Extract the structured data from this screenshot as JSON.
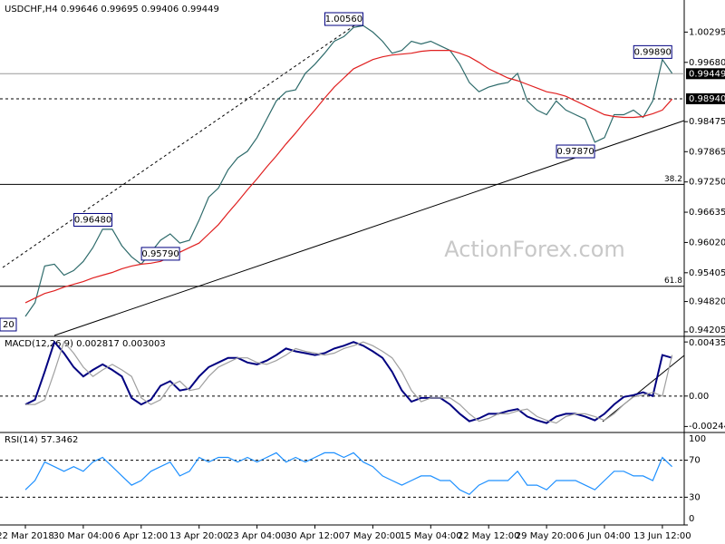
{
  "chart_data": [
    {
      "type": "line",
      "title": "USDCHF,H4 0.99646 0.99695 0.99406 0.99449",
      "categories": [
        "22 Mar 2018",
        null,
        null,
        null,
        null,
        null,
        "30 Mar 04:00",
        null,
        null,
        null,
        null,
        null,
        "6 Apr 12:00",
        null,
        null,
        null,
        null,
        null,
        "13 Apr 20:00",
        null,
        null,
        null,
        null,
        null,
        "23 Apr 04:00",
        null,
        null,
        null,
        null,
        null,
        "30 Apr 12:00",
        null,
        null,
        null,
        null,
        null,
        "7 May 20:00",
        null,
        null,
        null,
        null,
        null,
        "15 May 04:00",
        null,
        null,
        null,
        null,
        null,
        "22 May 12:00",
        null,
        null,
        null,
        null,
        null,
        "29 May 20:00",
        null,
        null,
        null,
        null,
        null,
        "6 Jun 04:00",
        null,
        null,
        null,
        null,
        null,
        "13 Jun 12:00",
        null
      ],
      "series": [
        {
          "color": "#2e6b6b",
          "values": [
            0.94517,
            0.94796,
            0.95542,
            0.95579,
            0.95355,
            0.95449,
            0.95635,
            0.95915,
            0.96287,
            0.96287,
            0.95952,
            0.95728,
            0.95579,
            0.95821,
            0.96064,
            0.96194,
            0.96008,
            0.96064,
            0.96474,
            0.9694,
            0.97126,
            0.97499,
            0.97741,
            0.97872,
            0.98151,
            0.98524,
            0.98897,
            0.99083,
            0.99121,
            0.99456,
            0.99643,
            0.99866,
            1.00109,
            1.00202,
            1.00388,
            1.00425,
            1.00295,
            1.00109,
            0.99866,
            0.99922,
            1.00109,
            1.00053,
            1.00109,
            1.00015,
            0.99922,
            0.99643,
            0.9927,
            0.99083,
            0.99177,
            0.99233,
            0.9927,
            0.99456,
            0.98897,
            0.98711,
            0.98617,
            0.98897,
            0.98711,
            0.98617,
            0.98524,
            0.98058,
            0.98151,
            0.98617,
            0.98617,
            0.98711,
            0.98561,
            0.98897,
            0.99736,
            0.99456
          ]
        },
        {
          "color": "#e02020",
          "values": [
            0.94796,
            0.94889,
            0.94983,
            0.95039,
            0.95113,
            0.95169,
            0.95225,
            0.95299,
            0.95355,
            0.95411,
            0.95486,
            0.95542,
            0.95579,
            0.95598,
            0.95635,
            0.95728,
            0.95821,
            0.95915,
            0.96008,
            0.96194,
            0.96381,
            0.96623,
            0.96847,
            0.97089,
            0.97313,
            0.97555,
            0.97779,
            0.98021,
            0.98245,
            0.98487,
            0.98711,
            0.98953,
            0.99177,
            0.99363,
            0.99549,
            0.99643,
            0.99736,
            0.99792,
            0.99829,
            0.99848,
            0.99866,
            0.99904,
            0.99922,
            0.99922,
            0.99922,
            0.99866,
            0.99792,
            0.9968,
            0.99549,
            0.99456,
            0.99363,
            0.99307,
            0.99233,
            0.99158,
            0.99083,
            0.99046,
            0.9899,
            0.98897,
            0.98804,
            0.98711,
            0.98617,
            0.9858,
            0.98561,
            0.98561,
            0.9858,
            0.98636,
            0.98711,
            0.98934
          ]
        }
      ],
      "ylim": [
        0.94112,
        1.00947
      ],
      "yticks": [
        1.00295,
        {
          "value": 0.9968,
          "label": "0.99680"
        },
        0.98475,
        0.97865,
        {
          "value": 0.9725,
          "label": "0.97250"
        },
        0.96635,
        {
          "value": 0.9602,
          "label": "0.96020"
        },
        0.95405,
        {
          "value": 0.9482,
          "label": "0.94820"
        },
        0.94205
      ],
      "levels": [
        {
          "value": 0.99449,
          "style": "solid"
        },
        {
          "value": 0.9894,
          "label": "0.98940",
          "style": "dashed"
        }
      ],
      "fib": [
        {
          "label": "38.2",
          "value": 0.972
        },
        {
          "label": "61.8",
          "value": 0.9513
        }
      ],
      "annotations": [
        {
          "label": "1.00560",
          "value": 1.0056,
          "index": 33
        },
        {
          "label": "0.99890",
          "value": 0.9989,
          "index": 65
        },
        {
          "label": "0.97870",
          "value": 0.9787,
          "index": 57
        },
        {
          "label": "0.96480",
          "value": 0.9648,
          "index": 7
        },
        {
          "label": "0.95790",
          "value": 0.9579,
          "index": 14
        }
      ],
      "clipped_label": "20",
      "watermark": "ActionForex.com"
    },
    {
      "type": "line",
      "title": "MACD(12,26,9) 0.002817 0.003003",
      "series": [
        {
          "color": "#000080",
          "values": [
            -0.000675,
            -0.0003,
            0.00195,
            0.00435,
            0.00345,
            0.002325,
            0.001575,
            0.0021,
            0.00255,
            0.0021,
            0.001575,
            -0.00015,
            -0.000675,
            -0.0003,
            0.000825,
            0.0012,
            0.00045,
            0.0006,
            0.001575,
            0.002325,
            0.0027,
            0.003075,
            0.003075,
            0.0027,
            0.00255,
            0.00285,
            0.0033,
            0.003825,
            0.0036,
            0.00345,
            0.0033,
            0.00345,
            0.003825,
            0.00405,
            0.00435,
            0.00405,
            0.0036,
            0.003075,
            0.00195,
            0.00045,
            -0.00045,
            -0.00015,
            -0.00015,
            -0.00015,
            -0.000675,
            -0.001425,
            -0.002025,
            -0.0018,
            -0.001425,
            -0.001425,
            -0.0012,
            -0.00105,
            -0.00165,
            -0.00195,
            -0.002175,
            -0.00165,
            -0.001425,
            -0.001425,
            -0.00165,
            -0.00195,
            -0.001425,
            -0.000675,
            -7.5e-05,
            7.5e-05,
            0.0003,
            0,
            0.0033,
            0.003075
          ]
        },
        {
          "color": "#a0a0a0",
          "values": [
            -0.000675,
            -0.000675,
            -0.0003,
            0.00195,
            0.00435,
            0.00345,
            0.002325,
            0.001575,
            0.0021,
            0.00255,
            0.0021,
            0.001575,
            -0.00015,
            -0.000675,
            -0.0003,
            0.000825,
            0.0012,
            0.00045,
            0.0006,
            0.001575,
            0.002325,
            0.0027,
            0.003075,
            0.003075,
            0.0027,
            0.00255,
            0.00285,
            0.0033,
            0.003825,
            0.0036,
            0.00345,
            0.0033,
            0.00345,
            0.003825,
            0.00405,
            0.00435,
            0.00405,
            0.0036,
            0.003075,
            0.00195,
            0.00045,
            -0.00045,
            -0.00015,
            -0.00015,
            -0.00015,
            -0.000675,
            -0.001425,
            -0.002025,
            -0.0018,
            -0.001425,
            -0.001425,
            -0.0012,
            -0.00105,
            -0.00165,
            -0.00195,
            -0.002175,
            -0.00165,
            -0.001425,
            -0.001425,
            -0.00165,
            -0.00195,
            -0.001425,
            -0.000675,
            -7.5e-05,
            7.5e-05,
            0.0003,
            0,
            0.0033
          ]
        }
      ],
      "ylim": [
        -0.00293,
        0.0048
      ],
      "yticks": [
        0.004351,
        {
          "value": 0,
          "label": "0.00"
        },
        -0.002448
      ],
      "zero_line": true
    },
    {
      "type": "line",
      "title": "RSI(14) 57.3462",
      "series": [
        {
          "color": "#1e90ff",
          "values": [
            38,
            48,
            68,
            63,
            58,
            63,
            58,
            68,
            73,
            63,
            53,
            43,
            48,
            58,
            63,
            68,
            53,
            58,
            73,
            68,
            73,
            73,
            68,
            73,
            68,
            73,
            78,
            68,
            73,
            68,
            73,
            78,
            78,
            73,
            78,
            68,
            63,
            53,
            48,
            43,
            48,
            53,
            53,
            48,
            48,
            38,
            33,
            43,
            48,
            48,
            48,
            58,
            43,
            43,
            38,
            48,
            48,
            48,
            43,
            38,
            48,
            58,
            58,
            53,
            53,
            48,
            73,
            63
          ]
        }
      ],
      "ylim": [
        0,
        100
      ],
      "yticks": [
        100,
        70,
        30,
        0
      ],
      "grid": true
    }
  ]
}
